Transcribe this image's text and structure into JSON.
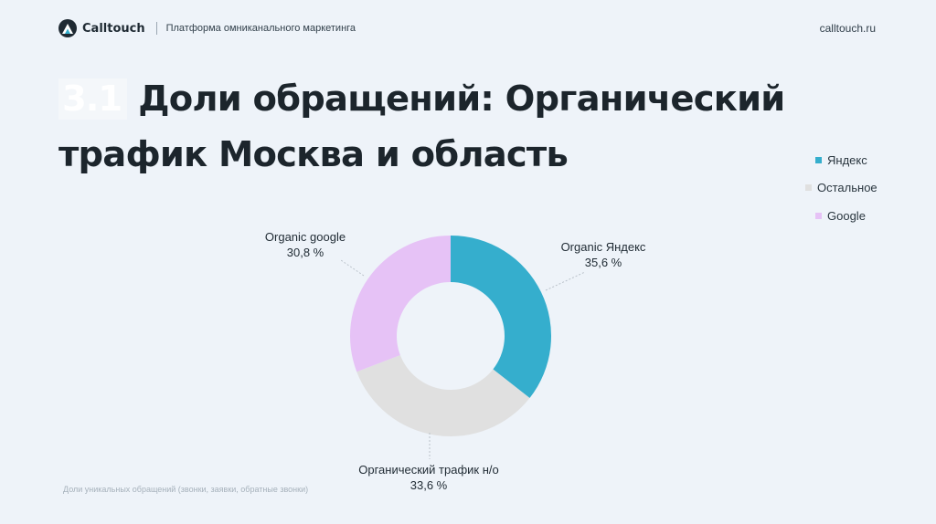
{
  "header": {
    "brand": "Calltouch",
    "tagline": "Платформа омниканального маркетинга",
    "site": "calltouch.ru"
  },
  "title": {
    "number": "3.1",
    "line1": "Доли обращений: Органический",
    "line2": "трафик Москва и область"
  },
  "legend": [
    {
      "label": "Яндекс",
      "color": "#35aecd"
    },
    {
      "label": "Остальное",
      "color": "#e0e0e0"
    },
    {
      "label": "Google",
      "color": "#e6c2f6"
    }
  ],
  "chart_data": {
    "type": "pie",
    "donut": true,
    "start": "12 o'clock",
    "direction": "clockwise",
    "slices": [
      {
        "name": "Organic Яндекс",
        "value": 35.6,
        "value_label": "35,6 %",
        "color": "#35aecd"
      },
      {
        "name": "Органический трафик н/о",
        "value": 33.6,
        "value_label": "33,6 %",
        "color": "#e0e0e0"
      },
      {
        "name": "Organic google",
        "value": 30.8,
        "value_label": "30,8 %",
        "color": "#e6c2f6"
      }
    ],
    "legend": [
      "Яндекс",
      "Остальное",
      "Google"
    ],
    "legend_position": "right"
  },
  "footnote": "Доли уникальных обращений (звонки, заявки, обратные звонки)"
}
